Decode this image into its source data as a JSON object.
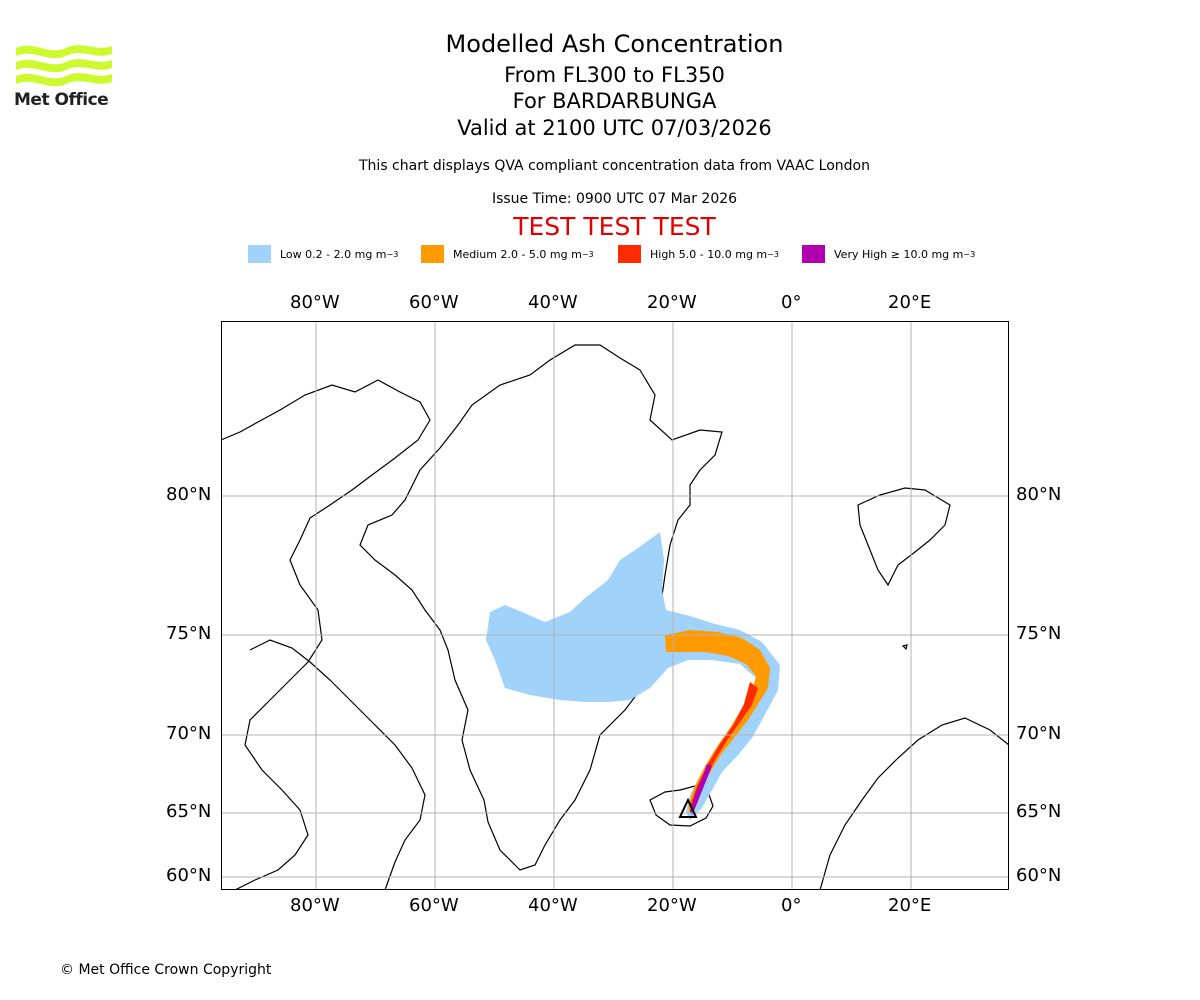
{
  "logo": {
    "text": "Met Office",
    "color": "#cdfa2e"
  },
  "titles": {
    "main": "Modelled Ash Concentration",
    "levels": "From FL300 to FL350",
    "volcano": "For BARDARBUNGA",
    "valid": "Valid at 2100 UTC 07/03/2026",
    "note": "This chart displays QVA compliant concentration data from VAAC London",
    "issue": "Issue Time: 0900 UTC 07 Mar 2026",
    "test_banner": "TEST TEST TEST",
    "test_banner_color": "#e10000"
  },
  "legend": [
    {
      "label": "Low 0.2 - 2.0 mg m",
      "color": "#a0d2fa"
    },
    {
      "label": "Medium 2.0 - 5.0 mg m",
      "color": "#ff9a00"
    },
    {
      "label": "High 5.0 - 10.0 mg m",
      "color": "#ff2b00"
    },
    {
      "label": "Very High ≥ 10.0 mg m",
      "color": "#b000b0"
    }
  ],
  "legend_unit_exponent": "−3",
  "map": {
    "lon_ticks": [
      "80°W",
      "60°W",
      "40°W",
      "20°W",
      "0°",
      "20°E"
    ],
    "lat_ticks": [
      "80°N",
      "75°N",
      "70°N",
      "65°N",
      "60°N"
    ],
    "grid": true,
    "source_marker": "volcano-triangle"
  },
  "footer": {
    "copyright": "© Met Office Crown Copyright"
  }
}
